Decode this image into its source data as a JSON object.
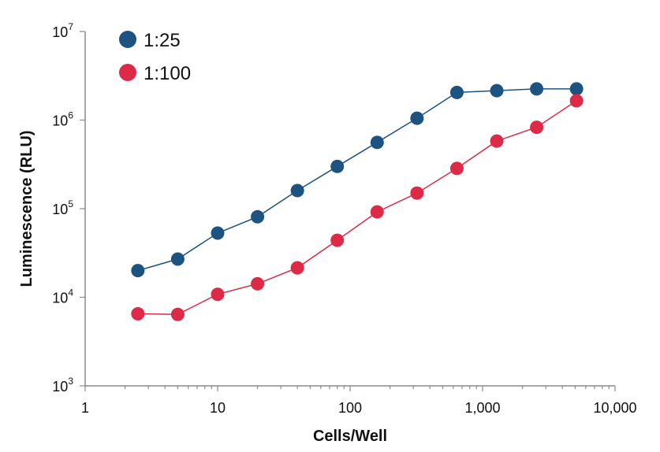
{
  "chart_data": {
    "type": "line",
    "xlabel": "Cells/Well",
    "ylabel": "Luminescence (RLU)",
    "x_scale": "log",
    "y_scale": "log",
    "xlim": [
      1,
      10000
    ],
    "ylim": [
      1000,
      10000000
    ],
    "x_ticks": [
      {
        "value": 1,
        "label": "1"
      },
      {
        "value": 10,
        "label": "10"
      },
      {
        "value": 100,
        "label": "100"
      },
      {
        "value": 1000,
        "label": "1,000"
      },
      {
        "value": 10000,
        "label": "10,000"
      }
    ],
    "y_ticks": [
      {
        "value": 1000,
        "base": "10",
        "exp": "3"
      },
      {
        "value": 10000,
        "base": "10",
        "exp": "4"
      },
      {
        "value": 100000,
        "base": "10",
        "exp": "5"
      },
      {
        "value": 1000000,
        "base": "10",
        "exp": "6"
      },
      {
        "value": 10000000,
        "base": "10",
        "exp": "7"
      }
    ],
    "grid": false,
    "legend_position": "top-left",
    "x": [
      2.5,
      5,
      10,
      20,
      40,
      80,
      160,
      320,
      640,
      1280,
      2560,
      5120
    ],
    "series": [
      {
        "name": "1:25",
        "color": "#1c5380",
        "values": [
          20000,
          27000,
          53000,
          81000,
          160000,
          300000,
          560000,
          1050000,
          2050000,
          2150000,
          2250000,
          2250000
        ]
      },
      {
        "name": "1:100",
        "color": "#dc2a47",
        "values": [
          6500,
          6400,
          10800,
          14200,
          21500,
          44000,
          92000,
          150000,
          285000,
          580000,
          830000,
          1650000
        ]
      }
    ]
  }
}
